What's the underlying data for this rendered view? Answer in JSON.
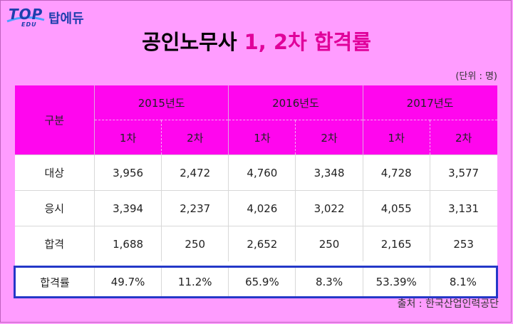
{
  "logo": {
    "top": "TOP",
    "edu": "EDU",
    "name": "탑에듀"
  },
  "title": {
    "part1": "공인노무사",
    "part2": "1, 2차 합격률"
  },
  "unit": "(단위 : 명)",
  "table": {
    "row_header": "구분",
    "years": [
      "2015년도",
      "2016년도",
      "2017년도"
    ],
    "stages": [
      "1차",
      "2차"
    ],
    "rows": [
      {
        "label": "대상",
        "values": [
          "3,956",
          "2,472",
          "4,760",
          "3,348",
          "4,728",
          "3,577"
        ]
      },
      {
        "label": "응시",
        "values": [
          "3,394",
          "2,237",
          "4,026",
          "3,022",
          "4,055",
          "3,131"
        ]
      },
      {
        "label": "합격",
        "values": [
          "1,688",
          "250",
          "2,652",
          "250",
          "2,165",
          "253"
        ]
      }
    ],
    "rate_row": {
      "label": "합격률",
      "values": [
        "49.7%",
        "11.2%",
        "65.9%",
        "8.3%",
        "53.39%",
        "8.1%"
      ]
    }
  },
  "source": "출처 : 한국산업인력공단",
  "colors": {
    "background": "#ff9cff",
    "header": "#ff06ee",
    "accent": "#e0009a",
    "highlight_border": "#2438c8"
  }
}
